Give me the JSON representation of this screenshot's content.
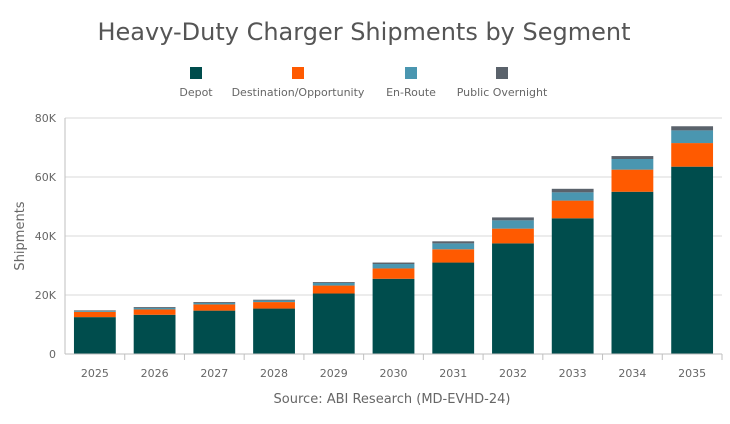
{
  "chart_data": {
    "type": "bar",
    "stacked": true,
    "title": "Heavy-Duty Charger Shipments by Segment",
    "ylabel": "Shipments",
    "source": "Source: ABI Research (MD-EVHD-24)",
    "legend_position": "top",
    "grid": true,
    "ylim": [
      0,
      80000
    ],
    "yticks": [
      "0",
      "20K",
      "40K",
      "60K",
      "80K"
    ],
    "categories": [
      "2025",
      "2026",
      "2027",
      "2028",
      "2029",
      "2030",
      "2031",
      "2032",
      "2033",
      "2034",
      "2035"
    ],
    "series": [
      {
        "name": "Depot",
        "color": "#004D4D",
        "values": [
          12500,
          13300,
          14700,
          15400,
          20500,
          25500,
          31000,
          37500,
          46000,
          55000,
          63500
        ]
      },
      {
        "name": "Destination/Opportunity",
        "color": "#FF5A00",
        "values": [
          1800,
          1800,
          2100,
          2200,
          2700,
          3500,
          4500,
          5000,
          6000,
          7500,
          8000
        ]
      },
      {
        "name": "En-Route",
        "color": "#4A96B0",
        "values": [
          300,
          500,
          500,
          500,
          900,
          1500,
          2000,
          2800,
          2800,
          3600,
          4300
        ]
      },
      {
        "name": "Public Overnight",
        "color": "#5A626B",
        "values": [
          200,
          300,
          300,
          300,
          300,
          500,
          700,
          1000,
          1200,
          1000,
          1400
        ]
      }
    ]
  }
}
